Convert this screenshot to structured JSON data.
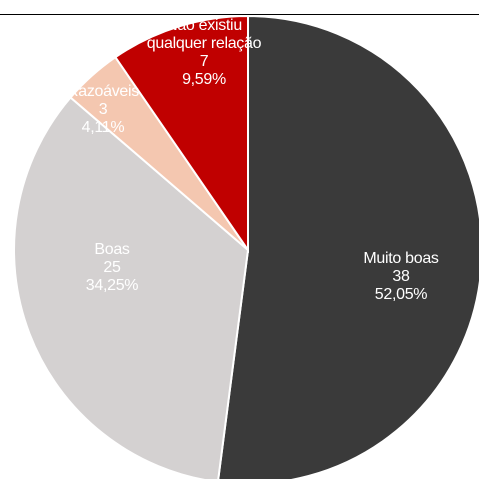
{
  "chart_data": {
    "type": "pie",
    "title": "",
    "slices": [
      {
        "label": "Muito boas",
        "value": 38,
        "percent": "52,05%",
        "count_text": "38",
        "color": "#3a3a3a",
        "text_color": "#ffffff"
      },
      {
        "label": "Boas",
        "value": 25,
        "percent": "34,25%",
        "count_text": "25",
        "color": "#d4d1d1",
        "text_color": "#ffffff"
      },
      {
        "label": "Razoáveis",
        "value": 3,
        "percent": "4,11%",
        "count_text": "3",
        "color": "#f4c7b0",
        "text_color": "#ffffff"
      },
      {
        "label": "Não existiu qualquer relação",
        "value": 7,
        "percent": "9,59%",
        "count_text": "7",
        "color": "#c00000",
        "text_color": "#ffffff"
      }
    ],
    "start_angle_deg": 0,
    "direction": "clockwise",
    "slice_border_color": "#ffffff"
  }
}
